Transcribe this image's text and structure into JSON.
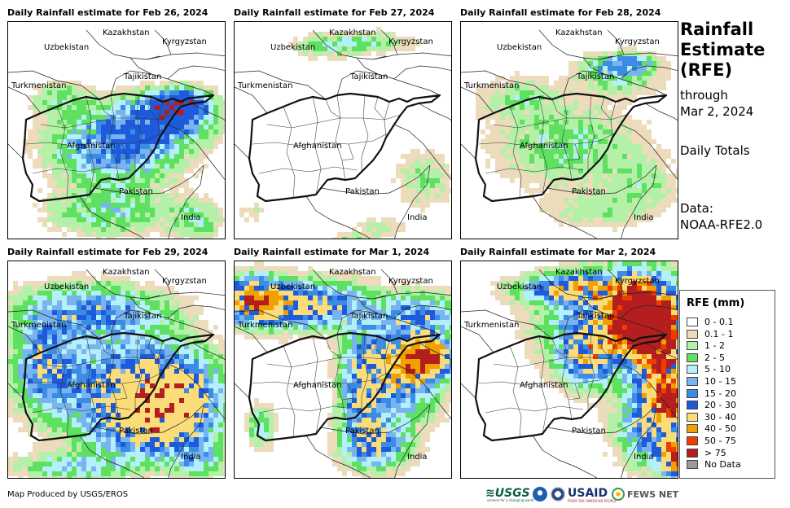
{
  "panels": [
    {
      "title": "Daily Rainfall estimate for Feb 26, 2024",
      "pattern": "moderate_center"
    },
    {
      "title": "Daily Rainfall estimate for Feb 27, 2024",
      "pattern": "mostly_dry"
    },
    {
      "title": "Daily Rainfall estimate for Feb 28, 2024",
      "pattern": "light_scattered"
    },
    {
      "title": "Daily Rainfall estimate for Feb 29, 2024",
      "pattern": "heavy_south"
    },
    {
      "title": "Daily Rainfall estimate for Mar 1, 2024",
      "pattern": "north_east_band"
    },
    {
      "title": "Daily Rainfall estimate for Mar 2, 2024",
      "pattern": "northeast_heavy"
    }
  ],
  "map_labels": {
    "uzbekistan": "Uzbekistan",
    "kazakhstan": "Kazakhstan",
    "kyrgyzstan": "Kyrgyzstan",
    "tajikistan": "Tajikistan",
    "turkmenistan": "Turkmenistan",
    "afghanistan": "Afghanistan",
    "pakistan": "Pakistan",
    "india": "India"
  },
  "sidebar": {
    "title_line1": "Rainfall",
    "title_line2": "Estimate",
    "title_line3": "(RFE)",
    "through_label": "through",
    "through_date": "Mar 2, 2024",
    "totals_label": "Daily Totals",
    "data_label": "Data:",
    "data_source": "NOAA-RFE2.0"
  },
  "legend": {
    "title": "RFE (mm)",
    "items": [
      {
        "label": "0 - 0.1",
        "color": "#ffffff"
      },
      {
        "label": "0.1 - 1",
        "color": "#ecdcbc"
      },
      {
        "label": "1 - 2",
        "color": "#b4f0a8"
      },
      {
        "label": "2 - 5",
        "color": "#5ee060"
      },
      {
        "label": "5 - 10",
        "color": "#b4f0fa"
      },
      {
        "label": "10 - 15",
        "color": "#78b4f0"
      },
      {
        "label": "15 - 20",
        "color": "#3c8ce6"
      },
      {
        "label": "20 - 30",
        "color": "#1e5adc"
      },
      {
        "label": "30 - 40",
        "color": "#fadc78"
      },
      {
        "label": "40 - 50",
        "color": "#f0a000"
      },
      {
        "label": "50 - 75",
        "color": "#f03c00"
      },
      {
        "label": "> 75",
        "color": "#b41e1e"
      },
      {
        "label": "No Data",
        "color": "#9a9a9a"
      }
    ]
  },
  "credit": "Map Produced by USGS/EROS",
  "logos": {
    "usgs": "≋USGS",
    "usgs_tagline": "science for a changing world",
    "usaid": "USAID",
    "usaid_tagline": "FROM THE AMERICAN PEOPLE",
    "fews": "FEWS NET",
    "noaa_icon": "noaa-logo-icon",
    "seal_icon": "seal-logo-icon",
    "fews_icon": "globe-icon"
  }
}
